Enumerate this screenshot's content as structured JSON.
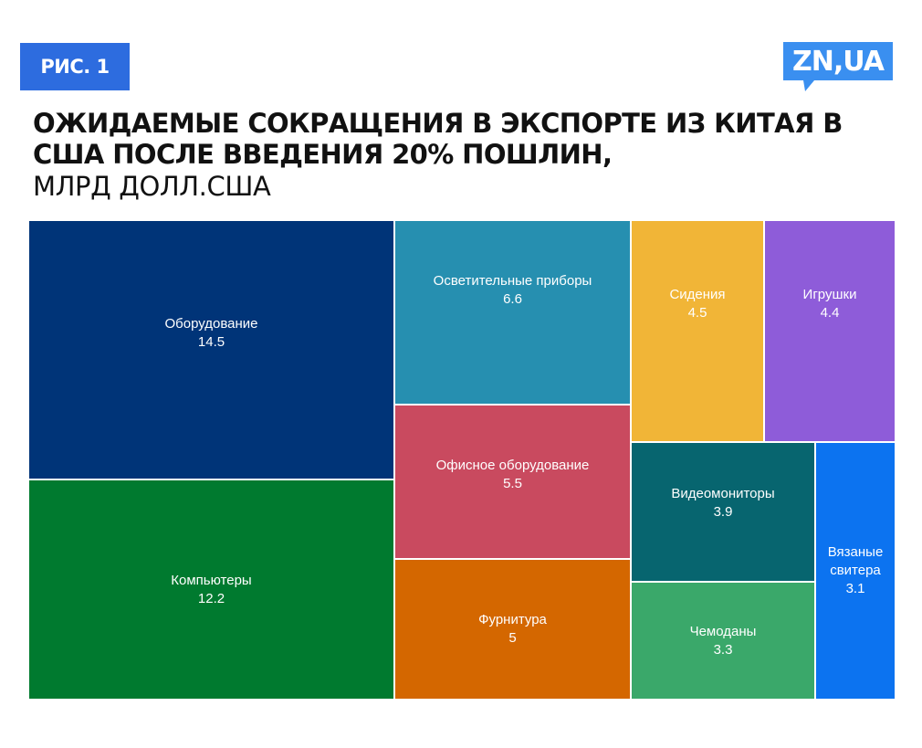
{
  "figure_label": "РИС. 1",
  "logo_text": "ZN,UA",
  "colors": {
    "label_bg": "#2d6cdf",
    "logo_bg": "#3a8ff0"
  },
  "chart_data": {
    "type": "treemap",
    "title": "ОЖИДАЕМЫЕ СОКРАЩЕНИЯ В ЭКСПОРТЕ ИЗ КИТАЯ В США ПОСЛЕ ВВЕДЕНИЯ 20% ПОШЛИН,",
    "unit": "МЛРД ДОЛЛ.США",
    "items": [
      {
        "name": "Оборудование",
        "value": "14.5",
        "color": "#003478"
      },
      {
        "name": "Компьютеры",
        "value": "12.2",
        "color": "#007a2f"
      },
      {
        "name": "Осветительные приборы",
        "value": "6.6",
        "color": "#268fb0"
      },
      {
        "name": "Офисное оборудование",
        "value": "5.5",
        "color": "#c94a5f"
      },
      {
        "name": "Фурнитура",
        "value": "5",
        "color": "#d46700"
      },
      {
        "name": "Сидения",
        "value": "4.5",
        "color": "#f1b537"
      },
      {
        "name": "Игрушки",
        "value": "4.4",
        "color": "#8e5cd9"
      },
      {
        "name": "Видеомониторы",
        "value": "3.9",
        "color": "#07656f"
      },
      {
        "name": "Чемоданы",
        "value": "3.3",
        "color": "#3aa86a"
      },
      {
        "name": "Вязаные свитера",
        "value": "3.1",
        "color": "#0c73f0"
      }
    ]
  }
}
